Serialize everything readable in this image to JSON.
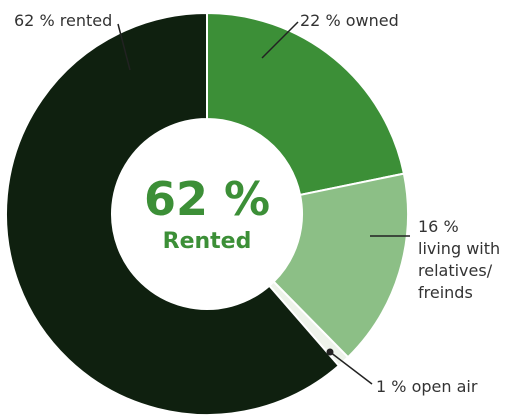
{
  "chart_data": {
    "type": "donut",
    "categories": [
      "owned",
      "living with\nrelatives/\nfreinds",
      "open air",
      "rented"
    ],
    "values": [
      22,
      16,
      1,
      62
    ],
    "value_labels": [
      "22 %",
      "16 %",
      "1 %",
      "62 %"
    ],
    "colors": [
      "#3c8f37",
      "#8cbf86",
      "#eef3ea",
      "#0f200f"
    ],
    "center_text": "62 %",
    "center_label": "Rented"
  }
}
